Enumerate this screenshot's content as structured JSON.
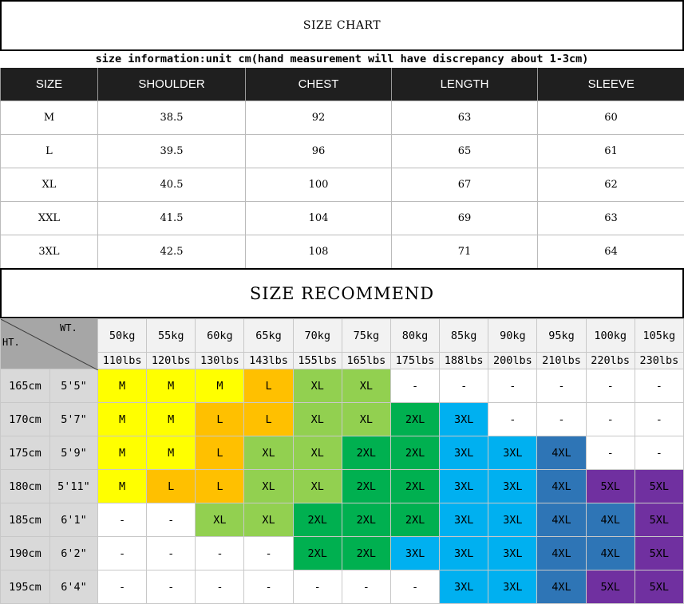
{
  "size_chart": {
    "title": "SIZE CHART",
    "subtitle": "size information:unit cm(hand measurement will have discrepancy about 1-3cm)",
    "headers": [
      "SIZE",
      "SHOULDER",
      "CHEST",
      "LENGTH",
      "SLEEVE"
    ],
    "rows": [
      [
        "M",
        "38.5",
        "92",
        "63",
        "60"
      ],
      [
        "L",
        "39.5",
        "96",
        "65",
        "61"
      ],
      [
        "XL",
        "40.5",
        "100",
        "67",
        "62"
      ],
      [
        "XXL",
        "41.5",
        "104",
        "69",
        "63"
      ],
      [
        "3XL",
        "42.5",
        "108",
        "71",
        "64"
      ]
    ]
  },
  "recommend": {
    "title": "SIZE RECOMMEND",
    "corner_weight": "WT.",
    "corner_height": "HT.",
    "weights_kg": [
      "50kg",
      "55kg",
      "60kg",
      "65kg",
      "70kg",
      "75kg",
      "80kg",
      "85kg",
      "90kg",
      "95kg",
      "100kg",
      "105kg"
    ],
    "weights_lbs": [
      "110lbs",
      "120lbs",
      "130lbs",
      "143lbs",
      "155lbs",
      "165lbs",
      "175lbs",
      "188lbs",
      "200lbs",
      "210lbs",
      "220lbs",
      "230lbs"
    ],
    "rows": [
      {
        "cm": "165cm",
        "ft": "5'5\"",
        "sizes": [
          "M",
          "M",
          "M",
          "L",
          "XL",
          "XL",
          "-",
          "-",
          "-",
          "-",
          "-",
          "-"
        ]
      },
      {
        "cm": "170cm",
        "ft": "5'7\"",
        "sizes": [
          "M",
          "M",
          "L",
          "L",
          "XL",
          "XL",
          "2XL",
          "3XL",
          "-",
          "-",
          "-",
          "-"
        ]
      },
      {
        "cm": "175cm",
        "ft": "5'9\"",
        "sizes": [
          "M",
          "M",
          "L",
          "XL",
          "XL",
          "2XL",
          "2XL",
          "3XL",
          "3XL",
          "4XL",
          "-",
          "-"
        ]
      },
      {
        "cm": "180cm",
        "ft": "5'11\"",
        "sizes": [
          "M",
          "L",
          "L",
          "XL",
          "XL",
          "2XL",
          "2XL",
          "3XL",
          "3XL",
          "4XL",
          "5XL",
          "5XL"
        ]
      },
      {
        "cm": "185cm",
        "ft": "6'1\"",
        "sizes": [
          "-",
          "-",
          "XL",
          "XL",
          "2XL",
          "2XL",
          "2XL",
          "3XL",
          "3XL",
          "4XL",
          "4XL",
          "5XL"
        ]
      },
      {
        "cm": "190cm",
        "ft": "6'2\"",
        "sizes": [
          "-",
          "-",
          "-",
          "-",
          "2XL",
          "2XL",
          "3XL",
          "3XL",
          "3XL",
          "4XL",
          "4XL",
          "5XL"
        ]
      },
      {
        "cm": "195cm",
        "ft": "6'4\"",
        "sizes": [
          "-",
          "-",
          "-",
          "-",
          "-",
          "-",
          "-",
          "3XL",
          "3XL",
          "4XL",
          "5XL",
          "5XL"
        ]
      }
    ],
    "size_colors": {
      "M": "#ffff00",
      "L": "#ffc000",
      "XL": "#92d050",
      "2XL": "#00b050",
      "3XL": "#00b0f0",
      "4XL": "#2e75b6",
      "5XL": "#7030a0",
      "-": "#ffffff"
    }
  }
}
